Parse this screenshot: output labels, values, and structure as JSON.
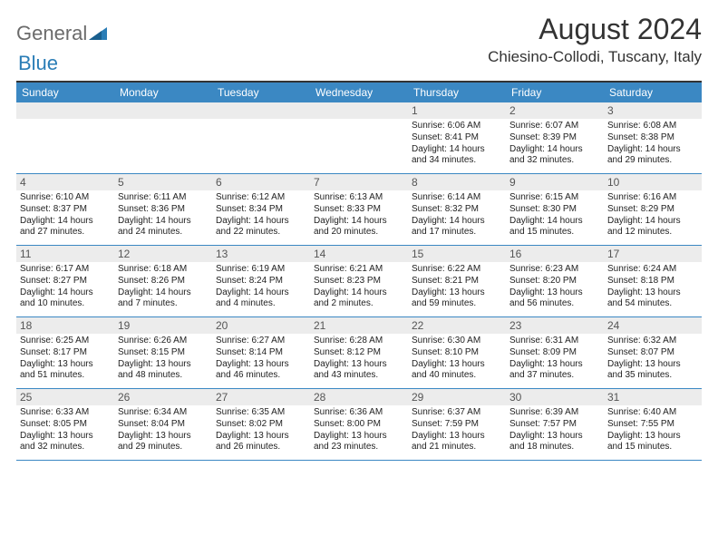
{
  "logo": {
    "text1": "General",
    "text2": "Blue"
  },
  "header": {
    "month": "August 2024",
    "location": "Chiesino-Collodi, Tuscany, Italy"
  },
  "colors": {
    "header_bar": "#3b88c3",
    "day_bg": "#ececec",
    "rule": "#333333",
    "logo_gray": "#6b6b6b",
    "logo_blue": "#2a7db6"
  },
  "daynames": [
    "Sunday",
    "Monday",
    "Tuesday",
    "Wednesday",
    "Thursday",
    "Friday",
    "Saturday"
  ],
  "weeks": [
    [
      null,
      null,
      null,
      null,
      {
        "d": "1",
        "sr": "6:06 AM",
        "ss": "8:41 PM",
        "dl": "14 hours and 34 minutes."
      },
      {
        "d": "2",
        "sr": "6:07 AM",
        "ss": "8:39 PM",
        "dl": "14 hours and 32 minutes."
      },
      {
        "d": "3",
        "sr": "6:08 AM",
        "ss": "8:38 PM",
        "dl": "14 hours and 29 minutes."
      }
    ],
    [
      {
        "d": "4",
        "sr": "6:10 AM",
        "ss": "8:37 PM",
        "dl": "14 hours and 27 minutes."
      },
      {
        "d": "5",
        "sr": "6:11 AM",
        "ss": "8:36 PM",
        "dl": "14 hours and 24 minutes."
      },
      {
        "d": "6",
        "sr": "6:12 AM",
        "ss": "8:34 PM",
        "dl": "14 hours and 22 minutes."
      },
      {
        "d": "7",
        "sr": "6:13 AM",
        "ss": "8:33 PM",
        "dl": "14 hours and 20 minutes."
      },
      {
        "d": "8",
        "sr": "6:14 AM",
        "ss": "8:32 PM",
        "dl": "14 hours and 17 minutes."
      },
      {
        "d": "9",
        "sr": "6:15 AM",
        "ss": "8:30 PM",
        "dl": "14 hours and 15 minutes."
      },
      {
        "d": "10",
        "sr": "6:16 AM",
        "ss": "8:29 PM",
        "dl": "14 hours and 12 minutes."
      }
    ],
    [
      {
        "d": "11",
        "sr": "6:17 AM",
        "ss": "8:27 PM",
        "dl": "14 hours and 10 minutes."
      },
      {
        "d": "12",
        "sr": "6:18 AM",
        "ss": "8:26 PM",
        "dl": "14 hours and 7 minutes."
      },
      {
        "d": "13",
        "sr": "6:19 AM",
        "ss": "8:24 PM",
        "dl": "14 hours and 4 minutes."
      },
      {
        "d": "14",
        "sr": "6:21 AM",
        "ss": "8:23 PM",
        "dl": "14 hours and 2 minutes."
      },
      {
        "d": "15",
        "sr": "6:22 AM",
        "ss": "8:21 PM",
        "dl": "13 hours and 59 minutes."
      },
      {
        "d": "16",
        "sr": "6:23 AM",
        "ss": "8:20 PM",
        "dl": "13 hours and 56 minutes."
      },
      {
        "d": "17",
        "sr": "6:24 AM",
        "ss": "8:18 PM",
        "dl": "13 hours and 54 minutes."
      }
    ],
    [
      {
        "d": "18",
        "sr": "6:25 AM",
        "ss": "8:17 PM",
        "dl": "13 hours and 51 minutes."
      },
      {
        "d": "19",
        "sr": "6:26 AM",
        "ss": "8:15 PM",
        "dl": "13 hours and 48 minutes."
      },
      {
        "d": "20",
        "sr": "6:27 AM",
        "ss": "8:14 PM",
        "dl": "13 hours and 46 minutes."
      },
      {
        "d": "21",
        "sr": "6:28 AM",
        "ss": "8:12 PM",
        "dl": "13 hours and 43 minutes."
      },
      {
        "d": "22",
        "sr": "6:30 AM",
        "ss": "8:10 PM",
        "dl": "13 hours and 40 minutes."
      },
      {
        "d": "23",
        "sr": "6:31 AM",
        "ss": "8:09 PM",
        "dl": "13 hours and 37 minutes."
      },
      {
        "d": "24",
        "sr": "6:32 AM",
        "ss": "8:07 PM",
        "dl": "13 hours and 35 minutes."
      }
    ],
    [
      {
        "d": "25",
        "sr": "6:33 AM",
        "ss": "8:05 PM",
        "dl": "13 hours and 32 minutes."
      },
      {
        "d": "26",
        "sr": "6:34 AM",
        "ss": "8:04 PM",
        "dl": "13 hours and 29 minutes."
      },
      {
        "d": "27",
        "sr": "6:35 AM",
        "ss": "8:02 PM",
        "dl": "13 hours and 26 minutes."
      },
      {
        "d": "28",
        "sr": "6:36 AM",
        "ss": "8:00 PM",
        "dl": "13 hours and 23 minutes."
      },
      {
        "d": "29",
        "sr": "6:37 AM",
        "ss": "7:59 PM",
        "dl": "13 hours and 21 minutes."
      },
      {
        "d": "30",
        "sr": "6:39 AM",
        "ss": "7:57 PM",
        "dl": "13 hours and 18 minutes."
      },
      {
        "d": "31",
        "sr": "6:40 AM",
        "ss": "7:55 PM",
        "dl": "13 hours and 15 minutes."
      }
    ]
  ],
  "labels": {
    "sunrise": "Sunrise: ",
    "sunset": "Sunset: ",
    "daylight": "Daylight: "
  }
}
